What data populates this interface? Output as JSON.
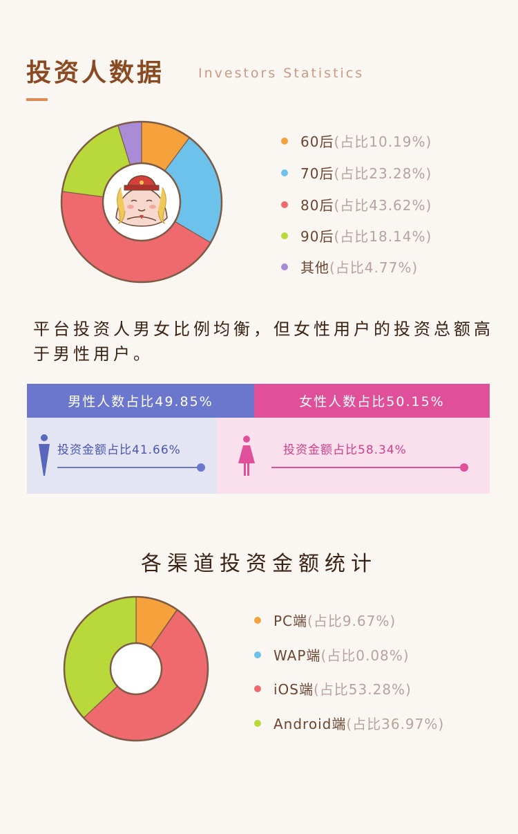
{
  "header": {
    "title_cn": "投资人数据",
    "title_en": "Investors Statistics"
  },
  "age_legend": [
    {
      "label": "60后",
      "pct": "(占比10.19%)",
      "color": "#f5a23d"
    },
    {
      "label": "70后",
      "pct": "(占比23.28%)",
      "color": "#6cc2ea"
    },
    {
      "label": "80后",
      "pct": "(占比43.62%)",
      "color": "#ef6a6e"
    },
    {
      "label": "90后",
      "pct": "(占比18.14%)",
      "color": "#b9d83a"
    },
    {
      "label": "其他",
      "pct": "(占比4.77%)",
      "color": "#a98bd6"
    }
  ],
  "gender": {
    "statement": "平台投资人男女比例均衡，但女性用户的投资总额高于男性用户。",
    "male_label": "男性人数占比49.85%",
    "female_label": "女性人数占比50.15%",
    "male_invest_label": "投资金额占比41.66%",
    "female_invest_label": "投资金额占比58.34%",
    "male_color": "#6a77cc",
    "female_color": "#e0509a",
    "male_invest_value": 41.66,
    "female_invest_value": 58.34
  },
  "channel": {
    "title": "各渠道投资金额统计"
  },
  "channel_legend": [
    {
      "label": "PC端",
      "pct": " (占比9.67%)",
      "color": "#f5a23d"
    },
    {
      "label": "WAP端",
      "pct": "(占比0.08%)",
      "color": "#6cc2ea"
    },
    {
      "label": "iOS端",
      "pct": "(占比53.28%)",
      "color": "#ef6a6e"
    },
    {
      "label": "Android端",
      "pct": "(占比36.97%)",
      "color": "#b9d83a"
    }
  ],
  "chart_data": [
    {
      "type": "pie",
      "categories": [
        "60后",
        "70后",
        "80后",
        "90后",
        "其他"
      ],
      "values": [
        10.19,
        23.28,
        43.62,
        18.14,
        4.77
      ],
      "colors": [
        "#f5a23d",
        "#6cc2ea",
        "#ef6a6e",
        "#b9d83a",
        "#a98bd6"
      ]
    },
    {
      "type": "pie",
      "categories": [
        "PC端",
        "WAP端",
        "iOS端",
        "Android端"
      ],
      "values": [
        9.67,
        0.08,
        53.28,
        36.97
      ],
      "colors": [
        "#f5a23d",
        "#6cc2ea",
        "#ef6a6e",
        "#b9d83a"
      ]
    }
  ]
}
